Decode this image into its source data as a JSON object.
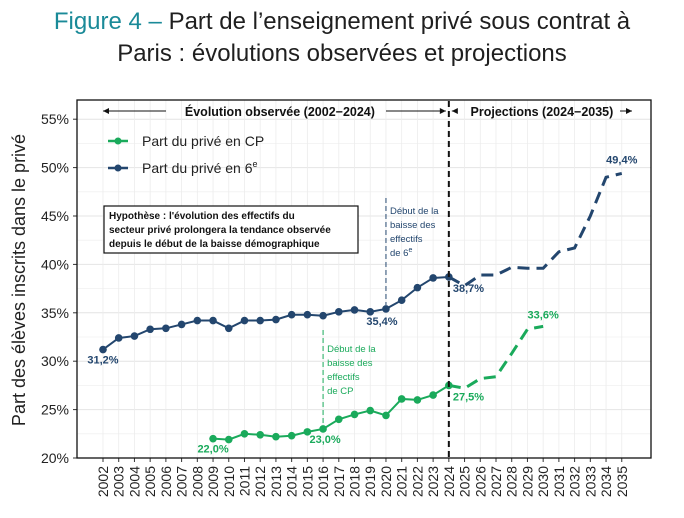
{
  "title": {
    "figure_label": "Figure 4 –",
    "line1_rest": "Part de l’enseignement privé sous contrat à",
    "line2": "Paris : évolutions observées et projections"
  },
  "colors": {
    "cp": "#1aaa5b",
    "sixieme": "#23466e",
    "title_accent": "#1a8a98"
  },
  "chart_data": {
    "type": "line",
    "ylabel": "Part des élèves inscrits dans le privé",
    "xlabel": "",
    "ylim": [
      20,
      56
    ],
    "yticks": [
      20,
      25,
      30,
      35,
      40,
      45,
      50,
      55
    ],
    "ytick_labels": [
      "20%",
      "25%",
      "30%",
      "35%",
      "40%",
      "45%",
      "50%",
      "55%"
    ],
    "xlim": [
      2002,
      2035
    ],
    "xticks": [
      2002,
      2003,
      2004,
      2005,
      2006,
      2007,
      2008,
      2009,
      2010,
      2011,
      2012,
      2013,
      2014,
      2015,
      2016,
      2017,
      2018,
      2019,
      2020,
      2021,
      2022,
      2023,
      2024,
      2025,
      2026,
      2027,
      2028,
      2029,
      2030,
      2031,
      2032,
      2033,
      2034,
      2035
    ],
    "grid": true,
    "legend_position": "top-left",
    "periods": {
      "observed": "Évolution observée (2002−2024)",
      "projection": "Projections (2024−2035)",
      "split_year": 2024
    },
    "hypothesis": [
      "Hypothèse :  l'évolution des effectifs du",
      "secteur privé prolongera la tendance observée",
      "depuis le début de la baisse démographique"
    ],
    "series": [
      {
        "name": "Part du privé en CP",
        "key": "cp",
        "observed": {
          "x": [
            2009,
            2010,
            2011,
            2012,
            2013,
            2014,
            2015,
            2016,
            2017,
            2018,
            2019,
            2020,
            2021,
            2022,
            2023,
            2024
          ],
          "y": [
            22.0,
            21.9,
            22.5,
            22.4,
            22.2,
            22.3,
            22.7,
            23.0,
            24.0,
            24.5,
            24.9,
            24.4,
            26.1,
            26.0,
            26.5,
            27.5
          ]
        },
        "projection": {
          "x": [
            2024,
            2025,
            2026,
            2027,
            2028,
            2029,
            2030
          ],
          "y": [
            27.5,
            27.2,
            28.2,
            28.4,
            30.8,
            33.3,
            33.6
          ]
        },
        "labels": [
          {
            "year": 2009,
            "text": "22,0%"
          },
          {
            "year": 2016,
            "text": "23,0%"
          },
          {
            "year": 2024,
            "text": "27,5%"
          },
          {
            "year": 2030,
            "text": "33,6%"
          }
        ],
        "annotation": {
          "year": 2016,
          "lines": [
            "Début de la",
            "baisse des",
            "effectifs",
            "de CP"
          ]
        }
      },
      {
        "name": "Part du privé en 6",
        "name_sup": "e",
        "key": "sixieme",
        "observed": {
          "x": [
            2002,
            2003,
            2004,
            2005,
            2006,
            2007,
            2008,
            2009,
            2010,
            2011,
            2012,
            2013,
            2014,
            2015,
            2016,
            2017,
            2018,
            2019,
            2020,
            2021,
            2022,
            2023,
            2024
          ],
          "y": [
            31.2,
            32.4,
            32.6,
            33.3,
            33.4,
            33.8,
            34.2,
            34.2,
            33.4,
            34.2,
            34.2,
            34.3,
            34.8,
            34.8,
            34.7,
            35.1,
            35.3,
            35.1,
            35.4,
            36.3,
            37.6,
            38.6,
            38.7
          ]
        },
        "projection": {
          "x": [
            2024,
            2025,
            2026,
            2027,
            2028,
            2029,
            2030,
            2031,
            2032,
            2033,
            2034,
            2035
          ],
          "y": [
            38.7,
            37.8,
            38.9,
            38.9,
            39.7,
            39.6,
            39.6,
            41.3,
            41.7,
            45.0,
            49.0,
            49.4
          ]
        },
        "labels": [
          {
            "year": 2002,
            "text": "31,2%"
          },
          {
            "year": 2020,
            "text": "35,4%"
          },
          {
            "year": 2024,
            "text": "38,7%"
          },
          {
            "year": 2035,
            "text": "49,4%"
          }
        ],
        "annotation": {
          "year": 2020,
          "lines": [
            "Début de la",
            "baisse des",
            "effectifs",
            "de 6"
          ],
          "last_sup": "e"
        }
      }
    ]
  }
}
